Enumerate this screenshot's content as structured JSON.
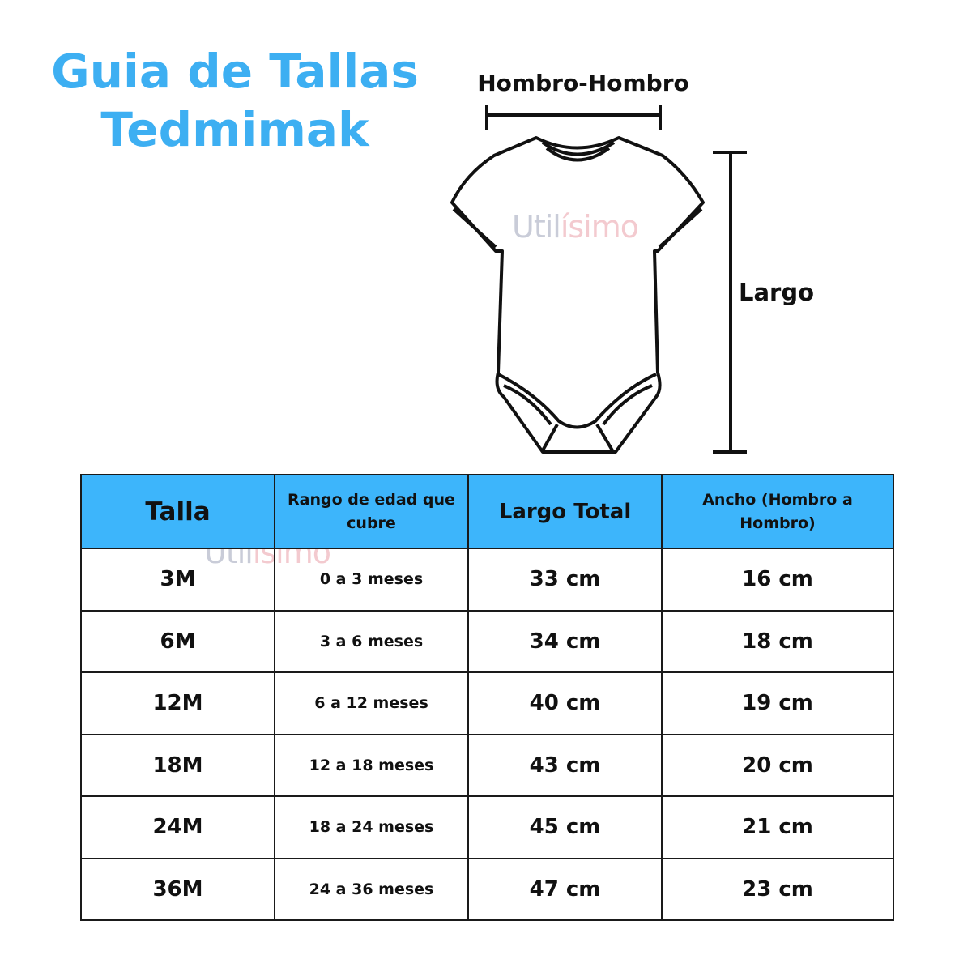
{
  "title": {
    "line1": "Guia de Tallas",
    "line2": "Tedmimak",
    "color": "#3daff2"
  },
  "diagram": {
    "shoulder_label": "Hombro-Hombro",
    "length_label": "Largo"
  },
  "watermark": {
    "part1": "Util",
    "part2": "ísimo"
  },
  "table": {
    "header_color": "#3db5fb",
    "headers": [
      "Talla",
      "Rango de edad que cubre",
      "Largo Total",
      "Ancho (Hombro a Hombro)"
    ],
    "rows": [
      [
        "3M",
        "0 a 3 meses",
        "33 cm",
        "16 cm"
      ],
      [
        "6M",
        "3 a 6 meses",
        "34 cm",
        "18 cm"
      ],
      [
        "12M",
        "6 a 12 meses",
        "40 cm",
        "19 cm"
      ],
      [
        "18M",
        "12 a 18 meses",
        "43 cm",
        "20 cm"
      ],
      [
        "24M",
        "18 a 24 meses",
        "45 cm",
        "21 cm"
      ],
      [
        "36M",
        "24 a 36 meses",
        "47 cm",
        "23 cm"
      ]
    ]
  }
}
